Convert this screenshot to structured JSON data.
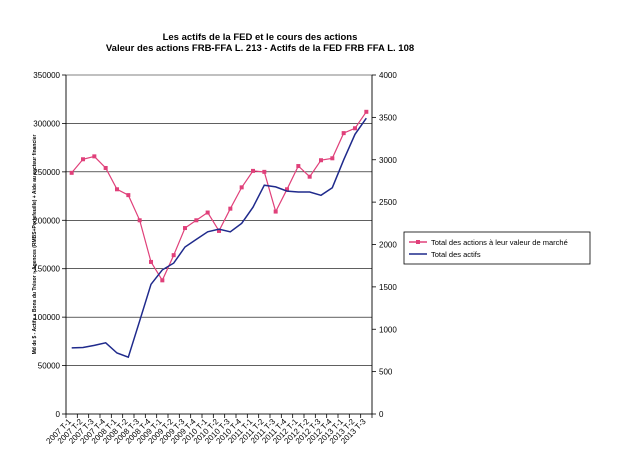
{
  "chart_data": {
    "type": "line",
    "title": "Les actifs de la FED et le cours des actions",
    "subtitle": "Valeur des actions FRB-FFA L. 213 - Actifs de la FED FRB FFA L. 108",
    "ylabel_left": "Md de $ - Actifs « Bons du Trésor » Agences (RMBS+Portefeuille) + Aide au secteur financier",
    "ylabel_right": "",
    "xlabel": "",
    "categories": [
      "2007 T-1",
      "2007 T-2",
      "2007 T-3",
      "2007 T-4",
      "2008 T-1",
      "2008 T-2",
      "2008 T-3",
      "2008 T-4",
      "2009 T-1",
      "2009 T-2",
      "2009 T-3",
      "2009 T-4",
      "2010 T-1",
      "2010 T-2",
      "2010 T-3",
      "2010 T-4",
      "2011 T-1",
      "2011 T-2",
      "2011 T-3",
      "2011 T-4",
      "2012 T-1",
      "2012 T-2",
      "2012 T-3",
      "2012 T-4",
      "2013 T-1",
      "2013 T-2",
      "2013 T-3"
    ],
    "ylim_left": [
      0,
      350000
    ],
    "yticks_left": [
      "0",
      "50000",
      "100000",
      "150000",
      "200000",
      "250000",
      "300000",
      "350000"
    ],
    "ylim_right": [
      0,
      4000
    ],
    "yticks_right": [
      "0",
      "500",
      "1000",
      "1500",
      "2000",
      "2500",
      "3000",
      "3500",
      "4000"
    ],
    "grid": "horizontal",
    "legend_position": "right",
    "series": [
      {
        "name": "Total des actions à leur valeur de marché",
        "axis": "left",
        "color": "#e0407a",
        "marker": "square",
        "values": [
          249000,
          263000,
          266000,
          254000,
          232000,
          226000,
          200000,
          157000,
          138000,
          164000,
          192000,
          200000,
          208000,
          189000,
          212000,
          234000,
          251000,
          250000,
          209000,
          232000,
          256000,
          245000,
          262000,
          264000,
          290000,
          295000,
          312000
        ]
      },
      {
        "name": "Total des actifs",
        "axis": "right",
        "color": "#1f2a8c",
        "marker": "none",
        "values": [
          780,
          785,
          810,
          840,
          720,
          670,
          1100,
          1530,
          1700,
          1780,
          1970,
          2060,
          2150,
          2180,
          2150,
          2250,
          2440,
          2700,
          2680,
          2630,
          2620,
          2620,
          2580,
          2670,
          3000,
          3300,
          3490
        ]
      }
    ]
  }
}
